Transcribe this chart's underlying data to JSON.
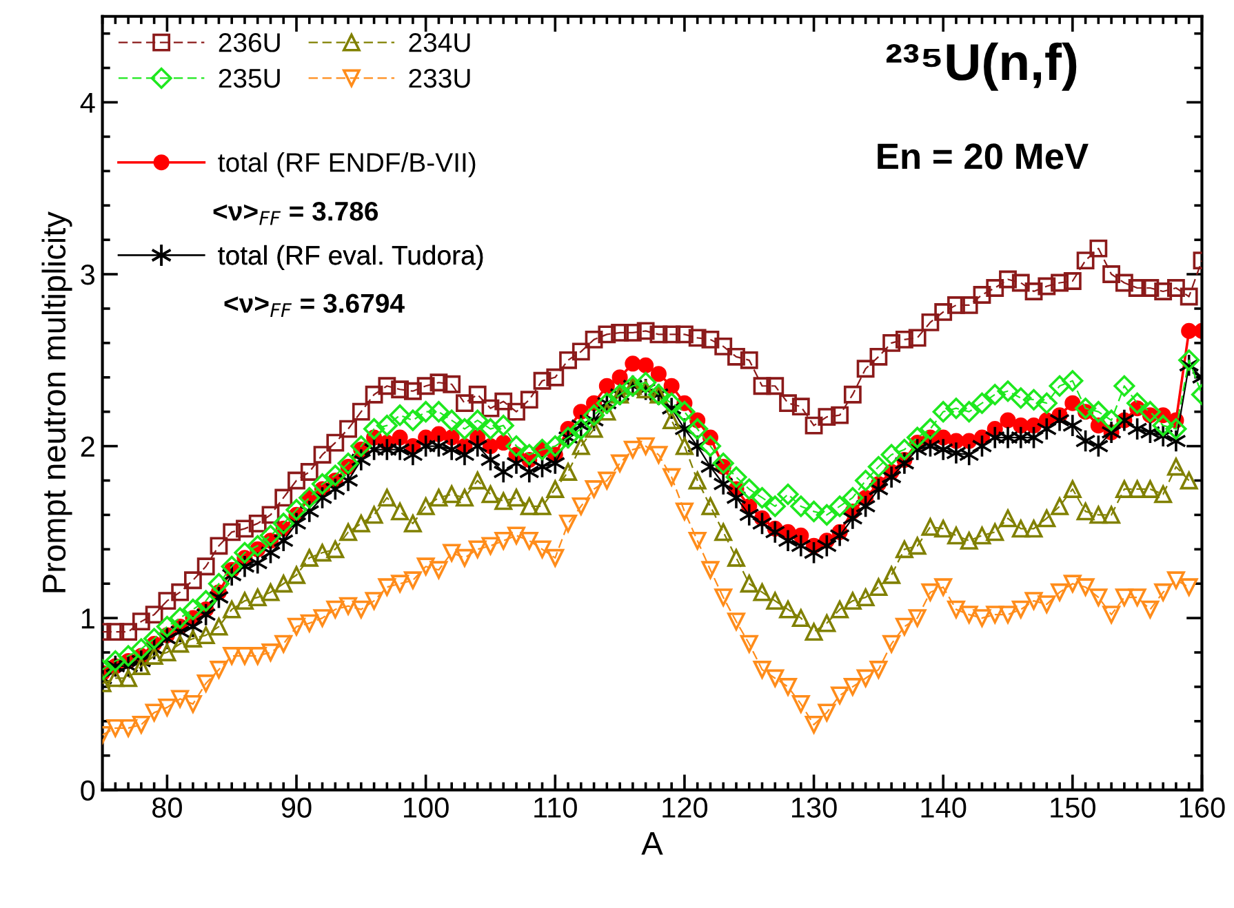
{
  "chart_data": {
    "type": "line",
    "title": "²³⁵U(n,f)",
    "subtitle": "En = 20 MeV",
    "xlabel": "A",
    "ylabel": "Prompt neutron multiplicity",
    "x": [
      75,
      76,
      77,
      78,
      79,
      80,
      81,
      82,
      83,
      84,
      85,
      86,
      87,
      88,
      89,
      90,
      91,
      92,
      93,
      94,
      95,
      96,
      97,
      98,
      99,
      100,
      101,
      102,
      103,
      104,
      105,
      106,
      107,
      108,
      109,
      110,
      111,
      112,
      113,
      114,
      115,
      116,
      117,
      118,
      119,
      120,
      121,
      122,
      123,
      124,
      125,
      126,
      127,
      128,
      129,
      130,
      131,
      132,
      133,
      134,
      135,
      136,
      137,
      138,
      139,
      140,
      141,
      142,
      143,
      144,
      145,
      146,
      147,
      148,
      149,
      150,
      151,
      152,
      153,
      154,
      155,
      156,
      157,
      158,
      159,
      160
    ],
    "xlim": [
      75,
      160
    ],
    "xticks": [
      80,
      90,
      100,
      110,
      120,
      130,
      140,
      150,
      160
    ],
    "ylim": [
      0,
      4.5
    ],
    "yticks": [
      0,
      1,
      2,
      3,
      4
    ],
    "grid": false,
    "legend": "top left",
    "series": [
      {
        "name": "236U",
        "color": "#8b1a1a",
        "marker": "square",
        "line_style": "dashed",
        "values": [
          0.92,
          0.92,
          0.92,
          0.98,
          1.02,
          1.1,
          1.15,
          1.22,
          1.3,
          1.42,
          1.5,
          1.52,
          1.55,
          1.6,
          1.7,
          1.8,
          1.85,
          1.95,
          2.02,
          2.1,
          2.2,
          2.3,
          2.35,
          2.33,
          2.32,
          2.35,
          2.37,
          2.36,
          2.25,
          2.3,
          2.22,
          2.26,
          2.2,
          2.27,
          2.38,
          2.4,
          2.5,
          2.55,
          2.62,
          2.65,
          2.66,
          2.66,
          2.67,
          2.65,
          2.65,
          2.65,
          2.63,
          2.62,
          2.58,
          2.52,
          2.5,
          2.35,
          2.35,
          2.25,
          2.23,
          2.12,
          2.17,
          2.18,
          2.3,
          2.45,
          2.52,
          2.6,
          2.62,
          2.63,
          2.72,
          2.78,
          2.82,
          2.82,
          2.88,
          2.92,
          2.97,
          2.95,
          2.9,
          2.93,
          2.95,
          2.96,
          3.08,
          3.15,
          3.0,
          2.95,
          2.92,
          2.92,
          2.9,
          2.92,
          2.87,
          3.08
        ]
      },
      {
        "name": "234U",
        "color": "#808000",
        "marker": "triangle",
        "line_style": "dashed",
        "values": [
          0.62,
          0.65,
          0.65,
          0.72,
          0.78,
          0.8,
          0.85,
          0.88,
          0.9,
          0.95,
          1.05,
          1.1,
          1.12,
          1.15,
          1.2,
          1.25,
          1.35,
          1.38,
          1.4,
          1.5,
          1.55,
          1.6,
          1.7,
          1.62,
          1.55,
          1.65,
          1.7,
          1.72,
          1.7,
          1.8,
          1.72,
          1.68,
          1.7,
          1.65,
          1.65,
          1.75,
          1.85,
          2.0,
          2.1,
          2.2,
          2.3,
          2.35,
          2.33,
          2.3,
          2.15,
          2.0,
          1.8,
          1.65,
          1.5,
          1.35,
          1.2,
          1.15,
          1.1,
          1.05,
          1.0,
          0.92,
          0.97,
          1.05,
          1.1,
          1.12,
          1.18,
          1.25,
          1.4,
          1.42,
          1.53,
          1.52,
          1.48,
          1.45,
          1.48,
          1.5,
          1.58,
          1.52,
          1.52,
          1.58,
          1.65,
          1.75,
          1.62,
          1.6,
          1.6,
          1.75,
          1.75,
          1.75,
          1.72,
          1.88,
          1.8,
          null
        ]
      },
      {
        "name": "235U",
        "color": "#1ee81e",
        "marker": "diamond",
        "line_style": "dashed",
        "values": [
          0.7,
          0.75,
          0.78,
          0.82,
          0.88,
          0.95,
          1.0,
          1.05,
          1.1,
          1.2,
          1.3,
          1.38,
          1.42,
          1.48,
          1.55,
          1.63,
          1.7,
          1.78,
          1.83,
          1.9,
          2.0,
          2.1,
          2.12,
          2.18,
          2.15,
          2.2,
          2.2,
          2.15,
          2.1,
          2.15,
          2.1,
          2.12,
          2.0,
          1.95,
          1.98,
          2.0,
          2.05,
          2.1,
          2.18,
          2.25,
          2.3,
          2.35,
          2.37,
          2.3,
          2.25,
          2.2,
          2.1,
          2.0,
          1.9,
          1.82,
          1.75,
          1.7,
          1.65,
          1.72,
          1.65,
          1.62,
          1.6,
          1.65,
          1.7,
          1.8,
          1.88,
          1.95,
          1.98,
          2.05,
          2.1,
          2.2,
          2.22,
          2.2,
          2.25,
          2.3,
          2.32,
          2.28,
          2.27,
          2.25,
          2.35,
          2.38,
          2.22,
          2.2,
          2.15,
          2.35,
          2.25,
          2.2,
          2.12,
          2.1,
          2.5,
          2.3
        ]
      },
      {
        "name": "233U",
        "color": "#ff8c1a",
        "marker": "triangle_down",
        "line_style": "dashed",
        "values": [
          0.32,
          0.36,
          0.36,
          0.38,
          0.45,
          0.48,
          0.53,
          0.5,
          0.62,
          0.7,
          0.78,
          0.78,
          0.78,
          0.8,
          0.85,
          0.95,
          0.97,
          1.0,
          1.05,
          1.07,
          1.05,
          1.1,
          1.18,
          1.2,
          1.22,
          1.3,
          1.28,
          1.38,
          1.35,
          1.4,
          1.42,
          1.45,
          1.48,
          1.45,
          1.4,
          1.35,
          1.55,
          1.65,
          1.75,
          1.8,
          1.9,
          1.98,
          2.0,
          1.95,
          1.82,
          1.62,
          1.45,
          1.28,
          1.12,
          0.98,
          0.85,
          0.7,
          0.65,
          0.6,
          0.5,
          0.38,
          0.45,
          0.55,
          0.6,
          0.65,
          0.7,
          0.85,
          0.95,
          1.0,
          1.15,
          1.18,
          1.05,
          1.02,
          1.0,
          1.02,
          1.02,
          1.05,
          1.1,
          1.08,
          1.15,
          1.2,
          1.18,
          1.12,
          1.02,
          1.12,
          1.12,
          1.05,
          1.15,
          1.22,
          1.18,
          null
        ]
      },
      {
        "name": "total (RF ENDF/B-VII)",
        "color": "#ff0000",
        "marker": "circle",
        "line_style": "solid",
        "values": [
          0.68,
          0.72,
          0.75,
          0.78,
          0.85,
          0.9,
          0.95,
          1.0,
          1.05,
          1.15,
          1.28,
          1.35,
          1.4,
          1.45,
          1.52,
          1.6,
          1.7,
          1.75,
          1.8,
          1.88,
          1.98,
          2.05,
          2.02,
          2.05,
          2.0,
          2.05,
          2.07,
          2.05,
          2.0,
          2.05,
          2.0,
          2.02,
          1.95,
          1.92,
          1.98,
          1.95,
          2.1,
          2.2,
          2.25,
          2.35,
          2.4,
          2.48,
          2.47,
          2.42,
          2.35,
          2.25,
          2.15,
          2.05,
          1.88,
          1.75,
          1.65,
          1.58,
          1.52,
          1.5,
          1.48,
          1.42,
          1.45,
          1.5,
          1.62,
          1.7,
          1.78,
          1.85,
          1.92,
          2.02,
          2.05,
          2.05,
          2.03,
          2.03,
          2.05,
          2.1,
          2.15,
          2.12,
          2.12,
          2.15,
          2.18,
          2.25,
          2.2,
          2.12,
          2.08,
          2.15,
          2.22,
          2.18,
          2.18,
          2.15,
          2.67,
          2.67
        ]
      },
      {
        "name": "total (RF eval. Tudora)",
        "color": "#000000",
        "marker": "cross",
        "line_style": "solid",
        "values": [
          0.65,
          0.72,
          0.72,
          0.75,
          0.82,
          0.88,
          0.92,
          0.95,
          1.02,
          1.12,
          1.25,
          1.3,
          1.32,
          1.38,
          1.45,
          1.55,
          1.62,
          1.7,
          1.75,
          1.8,
          1.92,
          1.98,
          1.98,
          1.98,
          1.95,
          2.0,
          2.0,
          1.98,
          1.95,
          2.0,
          1.92,
          1.85,
          1.9,
          1.85,
          1.88,
          1.9,
          2.05,
          2.12,
          2.15,
          2.25,
          2.3,
          2.35,
          2.33,
          2.3,
          2.22,
          2.1,
          2.0,
          1.88,
          1.78,
          1.7,
          1.6,
          1.55,
          1.5,
          1.45,
          1.42,
          1.38,
          1.42,
          1.48,
          1.58,
          1.65,
          1.75,
          1.82,
          1.9,
          1.98,
          2.0,
          1.98,
          1.96,
          1.95,
          2.0,
          2.05,
          2.05,
          2.05,
          2.05,
          2.1,
          2.15,
          2.12,
          2.03,
          2.0,
          2.08,
          2.15,
          2.1,
          2.08,
          2.06,
          2.03,
          2.47,
          2.4
        ]
      }
    ],
    "annotations": [
      "<ν>$_{FF}$ = 3.786",
      "<ν>$_{FF}$ = 3.6794"
    ]
  }
}
